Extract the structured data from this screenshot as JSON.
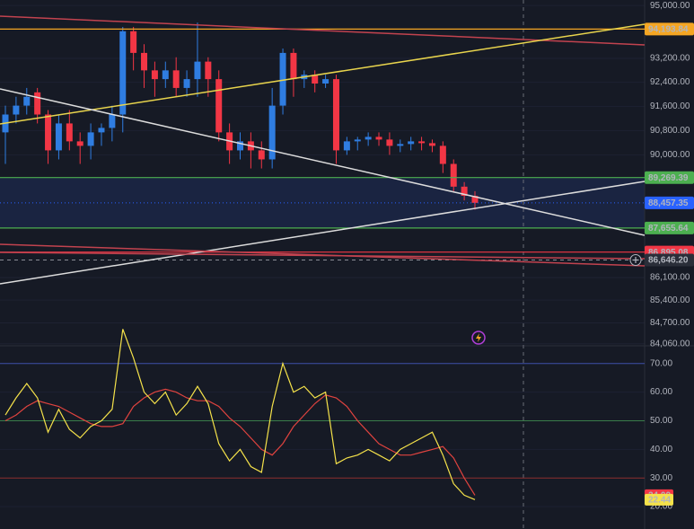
{
  "chart_data": [
    {
      "type": "candlestick",
      "ylim": [
        84000,
        95190
      ],
      "log_scale": true,
      "yticks": [
        {
          "value": 95000,
          "label": "95,000.00"
        },
        {
          "value": 93200,
          "label": "93,200.00"
        },
        {
          "value": 92400,
          "label": "92,400.00"
        },
        {
          "value": 91600,
          "label": "91,600.00"
        },
        {
          "value": 90800,
          "label": "90,800.00"
        },
        {
          "value": 90000,
          "label": "90,000.00"
        },
        {
          "value": 86100,
          "label": "86,100.00"
        },
        {
          "value": 85400,
          "label": "85,400.00"
        },
        {
          "value": 84700,
          "label": "84,700.00"
        },
        {
          "value": 84060,
          "label": "84,060.00"
        }
      ],
      "up_color": "#2f7de1",
      "down_color": "#f23645",
      "series": {
        "open": [
          90740,
          91328,
          91622,
          92063,
          91328,
          90152,
          91034,
          90446,
          90299,
          90740,
          90887,
          91328,
          94121,
          93386,
          92798,
          92504,
          92798,
          92210,
          92504,
          93092,
          92504,
          90740,
          90152,
          90446,
          90152,
          89858,
          91622,
          93386,
          92504,
          92651,
          92357,
          92504,
          90152,
          90446,
          90505,
          90593,
          90505,
          90299,
          90358,
          90446,
          90387,
          90299,
          89711,
          88976,
          88682
        ],
        "high": [
          91622,
          91916,
          92210,
          92210,
          91475,
          91328,
          91475,
          90740,
          91034,
          91034,
          91622,
          94268,
          94268,
          93680,
          93092,
          93092,
          93239,
          92798,
          94415,
          93239,
          92798,
          91034,
          90740,
          90740,
          90446,
          92210,
          93533,
          93533,
          92798,
          92798,
          92651,
          92651,
          90593,
          90593,
          90740,
          90740,
          90740,
          90505,
          90593,
          90593,
          90505,
          90446,
          89858,
          89123,
          88829
        ],
        "low": [
          89711,
          91034,
          91328,
          91034,
          89711,
          89858,
          90152,
          89711,
          89858,
          90299,
          90446,
          90740,
          92798,
          92210,
          91916,
          92210,
          91916,
          91916,
          91916,
          91916,
          90446,
          89711,
          89858,
          89564,
          89564,
          89564,
          91328,
          91916,
          92210,
          92063,
          92210,
          89711,
          90005,
          90152,
          90299,
          90299,
          90005,
          90093,
          90152,
          90152,
          90093,
          89417,
          88829,
          88535,
          88241
        ],
        "close": [
          91328,
          91622,
          91916,
          91328,
          90152,
          91034,
          90446,
          90299,
          90740,
          90887,
          91328,
          94121,
          93386,
          92798,
          92504,
          92798,
          92210,
          92504,
          93092,
          92504,
          90740,
          90152,
          90446,
          90152,
          89858,
          91622,
          93386,
          92504,
          92651,
          92357,
          92504,
          90152,
          90446,
          90505,
          90593,
          90505,
          90299,
          90358,
          90446,
          90387,
          90299,
          89711,
          88976,
          88682,
          88457
        ]
      },
      "price_lines": [
        {
          "value": 94193.84,
          "label": "94,193.84",
          "color": "#f5a623",
          "text_color": "#131722"
        },
        {
          "value": 89269.39,
          "label": "89,269.39",
          "color": "#4caf50",
          "text_color": "#131722"
        },
        {
          "value": 88457.35,
          "label": "88,457.35",
          "color": "#2962ff",
          "text_color": "#ffffff",
          "dotted": true
        },
        {
          "value": 87655.64,
          "label": "87,655.64",
          "color": "#4caf50",
          "text_color": "#131722"
        },
        {
          "value": 86895.08,
          "label": "86,895.08",
          "color": "#f23645",
          "text_color": "#ffffff"
        }
      ],
      "crosshair": {
        "value": 86646.2,
        "label": "86,646.20"
      }
    },
    {
      "type": "line",
      "ylim": [
        12,
        76
      ],
      "yticks": [
        {
          "value": 70,
          "label": "70.00"
        },
        {
          "value": 60,
          "label": "60.00"
        },
        {
          "value": 50,
          "label": "50.00"
        },
        {
          "value": 40,
          "label": "40.00"
        },
        {
          "value": 30,
          "label": "30.00"
        },
        {
          "value": 20,
          "label": "20.00"
        }
      ],
      "level_lines": [
        {
          "value": 70,
          "color": "#3d4fa8"
        },
        {
          "value": 50,
          "color": "#3a7d4a"
        },
        {
          "value": 30,
          "color": "#8b2d2d"
        }
      ],
      "series": [
        {
          "color": "#e0433f",
          "values": [
            50,
            52,
            55,
            57,
            56,
            55,
            53,
            51,
            49,
            48,
            48,
            49,
            55,
            58,
            60,
            61,
            60,
            58,
            57,
            57,
            55,
            51,
            48,
            44,
            40,
            38,
            42,
            48,
            52,
            56,
            59,
            58,
            55,
            50,
            46,
            42,
            40,
            38,
            38,
            39,
            40,
            41,
            37,
            30,
            24
          ]
        },
        {
          "color": "#f5e24a",
          "values": [
            52,
            58,
            63,
            58,
            46,
            54,
            47,
            44,
            48,
            50,
            54,
            82,
            72,
            60,
            56,
            60,
            52,
            56,
            62,
            56,
            42,
            36,
            40,
            34,
            32,
            55,
            70,
            60,
            62,
            58,
            60,
            35,
            37,
            38,
            40,
            38,
            36,
            40,
            42,
            44,
            46,
            38,
            28,
            24,
            22.44
          ]
        }
      ],
      "tags": [
        {
          "value": 24,
          "label": "24.00",
          "color": "#f23645",
          "text_color": "#ffffff"
        },
        {
          "value": 22.44,
          "label": "22.44",
          "color": "#f5e24a",
          "text_color": "#131722"
        }
      ]
    }
  ]
}
